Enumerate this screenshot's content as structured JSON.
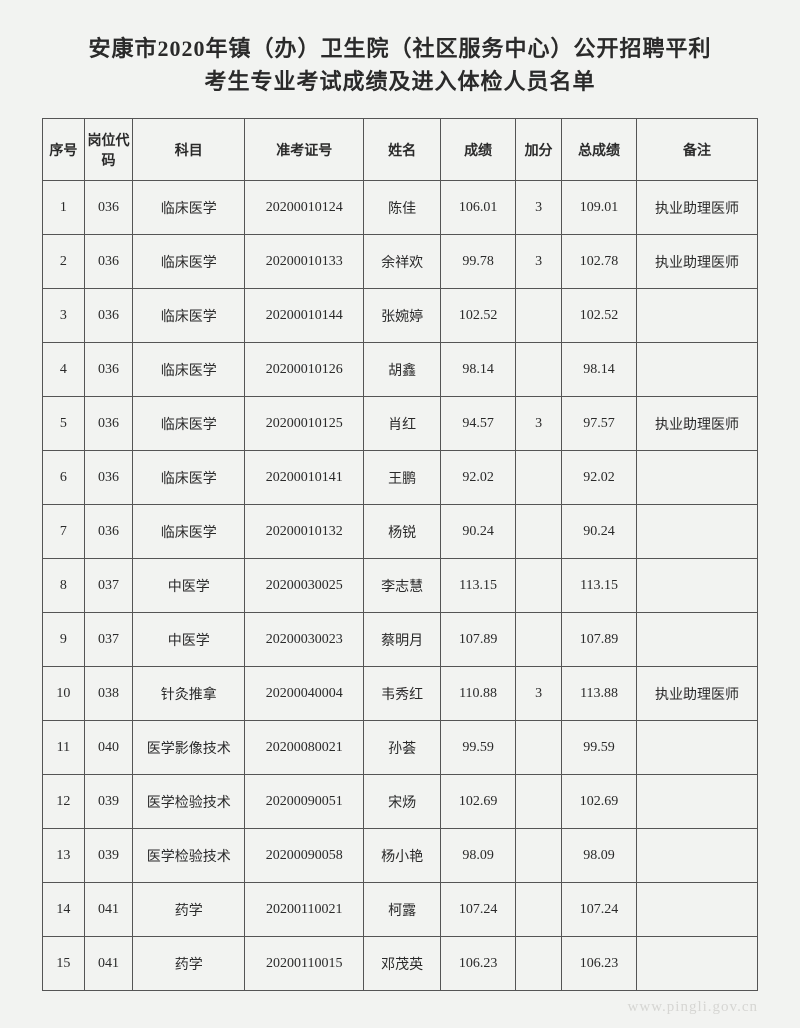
{
  "title_line1": "安康市2020年镇（办）卫生院（社区服务中心）公开招聘平利",
  "title_line2": "考生专业考试成绩及进入体检人员名单",
  "headers": {
    "seq": "序号",
    "code": "岗位代码",
    "subject": "科目",
    "ticket": "准考证号",
    "name": "姓名",
    "score": "成绩",
    "bonus": "加分",
    "total": "总成绩",
    "note": "备注"
  },
  "rows": [
    {
      "seq": "1",
      "code": "036",
      "subject": "临床医学",
      "ticket": "20200010124",
      "name": "陈佳",
      "score": "106.01",
      "bonus": "3",
      "total": "109.01",
      "note": "执业助理医师"
    },
    {
      "seq": "2",
      "code": "036",
      "subject": "临床医学",
      "ticket": "20200010133",
      "name": "余祥欢",
      "score": "99.78",
      "bonus": "3",
      "total": "102.78",
      "note": "执业助理医师"
    },
    {
      "seq": "3",
      "code": "036",
      "subject": "临床医学",
      "ticket": "20200010144",
      "name": "张婉婷",
      "score": "102.52",
      "bonus": "",
      "total": "102.52",
      "note": ""
    },
    {
      "seq": "4",
      "code": "036",
      "subject": "临床医学",
      "ticket": "20200010126",
      "name": "胡鑫",
      "score": "98.14",
      "bonus": "",
      "total": "98.14",
      "note": ""
    },
    {
      "seq": "5",
      "code": "036",
      "subject": "临床医学",
      "ticket": "20200010125",
      "name": "肖红",
      "score": "94.57",
      "bonus": "3",
      "total": "97.57",
      "note": "执业助理医师"
    },
    {
      "seq": "6",
      "code": "036",
      "subject": "临床医学",
      "ticket": "20200010141",
      "name": "王鹏",
      "score": "92.02",
      "bonus": "",
      "total": "92.02",
      "note": ""
    },
    {
      "seq": "7",
      "code": "036",
      "subject": "临床医学",
      "ticket": "20200010132",
      "name": "杨锐",
      "score": "90.24",
      "bonus": "",
      "total": "90.24",
      "note": ""
    },
    {
      "seq": "8",
      "code": "037",
      "subject": "中医学",
      "ticket": "20200030025",
      "name": "李志慧",
      "score": "113.15",
      "bonus": "",
      "total": "113.15",
      "note": ""
    },
    {
      "seq": "9",
      "code": "037",
      "subject": "中医学",
      "ticket": "20200030023",
      "name": "蔡明月",
      "score": "107.89",
      "bonus": "",
      "total": "107.89",
      "note": ""
    },
    {
      "seq": "10",
      "code": "038",
      "subject": "针灸推拿",
      "ticket": "20200040004",
      "name": "韦秀红",
      "score": "110.88",
      "bonus": "3",
      "total": "113.88",
      "note": "执业助理医师"
    },
    {
      "seq": "11",
      "code": "040",
      "subject": "医学影像技术",
      "ticket": "20200080021",
      "name": "孙荟",
      "score": "99.59",
      "bonus": "",
      "total": "99.59",
      "note": ""
    },
    {
      "seq": "12",
      "code": "039",
      "subject": "医学检验技术",
      "ticket": "20200090051",
      "name": "宋炀",
      "score": "102.69",
      "bonus": "",
      "total": "102.69",
      "note": ""
    },
    {
      "seq": "13",
      "code": "039",
      "subject": "医学检验技术",
      "ticket": "20200090058",
      "name": "杨小艳",
      "score": "98.09",
      "bonus": "",
      "total": "98.09",
      "note": ""
    },
    {
      "seq": "14",
      "code": "041",
      "subject": "药学",
      "ticket": "20200110021",
      "name": "柯露",
      "score": "107.24",
      "bonus": "",
      "total": "107.24",
      "note": ""
    },
    {
      "seq": "15",
      "code": "041",
      "subject": "药学",
      "ticket": "20200110015",
      "name": "邓茂英",
      "score": "106.23",
      "bonus": "",
      "total": "106.23",
      "note": ""
    }
  ],
  "watermark": "www.pingli.gov.cn",
  "styling": {
    "page_bg": "#f2f3f1",
    "border_color": "#555555",
    "text_color": "#2a2a2a",
    "title_fontsize": 22,
    "cell_fontsize": 14,
    "header_row_height": 62,
    "data_row_height": 54,
    "col_widths": {
      "seq": 38,
      "code": 44,
      "subject": 102,
      "ticket": 108,
      "name": 70,
      "score": 68,
      "bonus": 42,
      "total": 68,
      "note": 110
    }
  }
}
